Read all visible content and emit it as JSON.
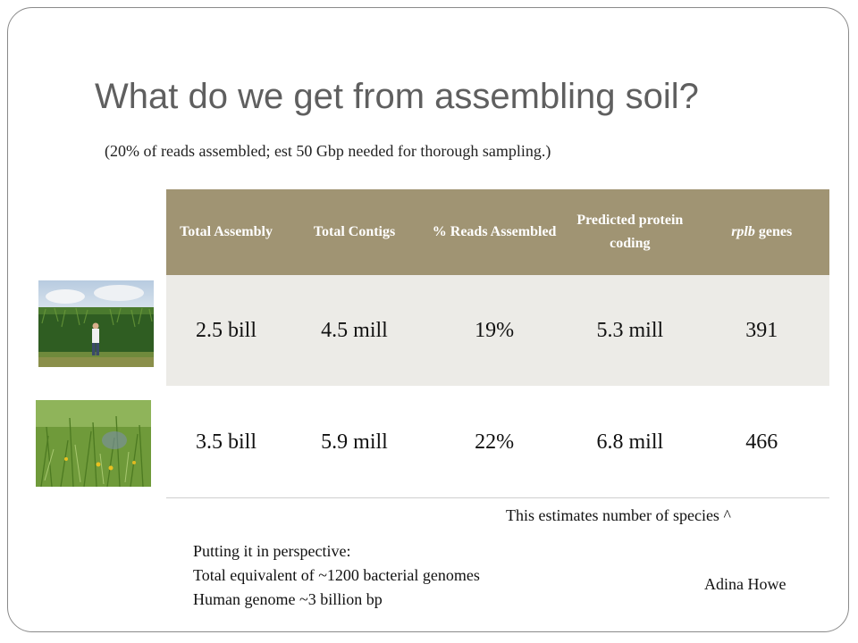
{
  "slide": {
    "title": "What do we get from assembling soil?",
    "subtitle": "(20% of reads assembled; est 50 Gbp needed for thorough sampling.)"
  },
  "table": {
    "headers": {
      "total_assembly": "Total Assembly",
      "total_contigs": "Total Contigs",
      "reads_assembled": "% Reads Assembled",
      "predicted_protein": "Predicted protein coding",
      "rplb_italic": "rplb",
      "rplb_suffix": " genes"
    },
    "rows": [
      {
        "total_assembly": "2.5 bill",
        "total_contigs": "4.5 mill",
        "reads_assembled": "19%",
        "predicted_protein": "5.3 mill",
        "rplb_genes": "391"
      },
      {
        "total_assembly": "3.5 bill",
        "total_contigs": "5.9 mill",
        "reads_assembled": "22%",
        "predicted_protein": "6.8 mill",
        "rplb_genes": "466"
      }
    ]
  },
  "notes": {
    "species": "This estimates number of species ^",
    "perspective_heading": "Putting it in perspective:",
    "perspective_line1": "Total equivalent of ~1200 bacterial genomes",
    "perspective_line2": "Human genome ~3 billion bp"
  },
  "credit": "Adina Howe",
  "colors": {
    "header_bg": "#a09473",
    "row_shaded": "#ecebe7",
    "title_text": "#5f5f5f"
  },
  "images": [
    "corn-field-photo",
    "prairie-photo"
  ]
}
